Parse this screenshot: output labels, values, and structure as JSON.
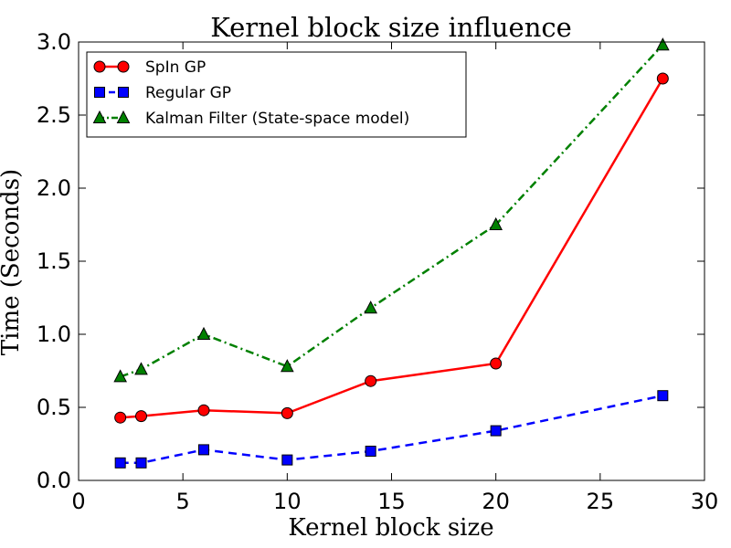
{
  "chart_data": {
    "type": "line",
    "title": "Kernel block size influence",
    "xlabel": "Kernel block size",
    "ylabel": "Time (Seconds)",
    "xlim": [
      0,
      30
    ],
    "ylim": [
      0.0,
      3.0
    ],
    "xticks": [
      0,
      5,
      10,
      15,
      20,
      25,
      30
    ],
    "xtick_labels": [
      "0",
      "5",
      "10",
      "15",
      "20",
      "25",
      "30"
    ],
    "yticks": [
      0.0,
      0.5,
      1.0,
      1.5,
      2.0,
      2.5,
      3.0
    ],
    "ytick_labels": [
      "0.0",
      "0.5",
      "1.0",
      "1.5",
      "2.0",
      "2.5",
      "3.0"
    ],
    "grid": false,
    "legend_position": "top-left",
    "x": [
      2,
      3,
      6,
      10,
      14,
      20,
      28
    ],
    "series": [
      {
        "name": "SpIn GP",
        "values": [
          0.43,
          0.44,
          0.48,
          0.46,
          0.68,
          0.8,
          2.75
        ],
        "color": "#ff0000",
        "marker": "circle",
        "linestyle": "solid"
      },
      {
        "name": "Regular GP",
        "values": [
          0.12,
          0.12,
          0.21,
          0.14,
          0.2,
          0.34,
          0.58
        ],
        "color": "#0000ff",
        "marker": "square",
        "linestyle": "dashed"
      },
      {
        "name": "Kalman Filter (State-space model)",
        "values": [
          0.71,
          0.76,
          1.0,
          0.78,
          1.18,
          1.75,
          2.98
        ],
        "color": "#008000",
        "marker": "triangle",
        "linestyle": "dashdot"
      }
    ]
  }
}
